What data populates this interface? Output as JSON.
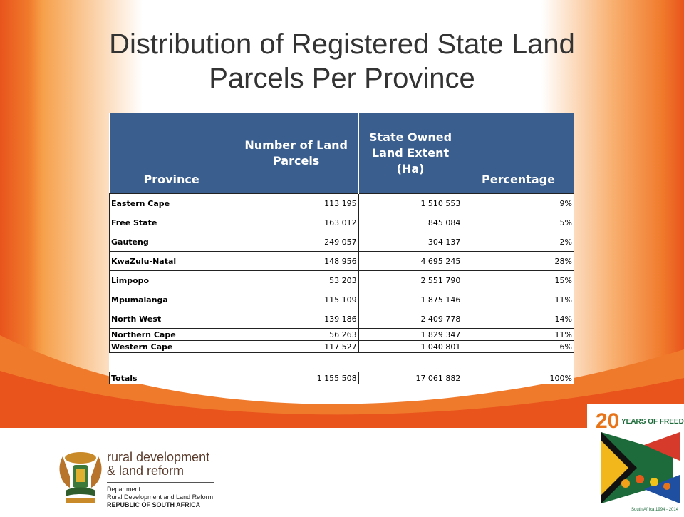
{
  "slide": {
    "title": "Distribution of Registered State Land Parcels Per Province"
  },
  "table": {
    "headers": [
      "Province",
      "Number of Land Parcels",
      "State Owned Land Extent (Ha)",
      "Percentage"
    ],
    "rows": [
      {
        "province": "Eastern Cape",
        "parcels": "113 195",
        "extent": "1 510 553",
        "percentage": "9%"
      },
      {
        "province": "Free State",
        "parcels": "163 012",
        "extent": "845 084",
        "percentage": "5%"
      },
      {
        "province": "Gauteng",
        "parcels": "249 057",
        "extent": "304 137",
        "percentage": "2%"
      },
      {
        "province": "KwaZulu-Natal",
        "parcels": "148 956",
        "extent": "4 695 245",
        "percentage": "28%"
      },
      {
        "province": "Limpopo",
        "parcels": "53 203",
        "extent": "2 551 790",
        "percentage": "15%"
      },
      {
        "province": "Mpumalanga",
        "parcels": "115 109",
        "extent": "1 875 146",
        "percentage": "11%"
      },
      {
        "province": "North West",
        "parcels": "139 186",
        "extent": "2 409 778",
        "percentage": "14%"
      },
      {
        "province": "Northern Cape",
        "parcels": "56 263",
        "extent": "1 829 347",
        "percentage": "11%"
      },
      {
        "province": "Western Cape",
        "parcels": "117 527",
        "extent": "1 040 801",
        "percentage": "6%"
      }
    ],
    "totals": {
      "label": "Totals",
      "parcels": "1 155 508",
      "extent": "17 061 882",
      "percentage": "100%"
    }
  },
  "footer": {
    "dept_name_line1": "rural development",
    "dept_name_line2": "& land reform",
    "dept_label": "Department:",
    "dept_full": "Rural Development and Land Reform",
    "country": "REPUBLIC OF SOUTH AFRICA",
    "badge_number": "20",
    "badge_text": "YEARS OF FREEDOM",
    "badge_subtext": "South Africa 1994 - 2014"
  },
  "colors": {
    "header_bg": "#3a5f8f",
    "accent_orange": "#e8541c"
  }
}
